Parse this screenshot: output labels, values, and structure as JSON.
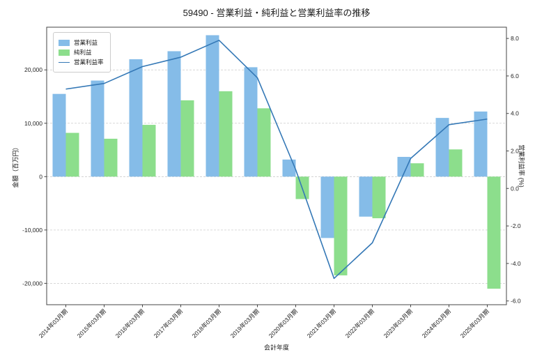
{
  "title": "59490 - 営業利益・純利益と営業利益率の推移",
  "axes": {
    "left_label": "金額（百万円）",
    "right_label": "営業利益率 (%)",
    "x_label": "会計年度",
    "left_ticks": [
      "20,000",
      "10,000",
      "0",
      "-10,000",
      "-20,000"
    ],
    "right_ticks": [
      "8.0",
      "6.0",
      "4.0",
      "2.0",
      "0.0",
      "-2.0",
      "-4.0",
      "-6.0"
    ]
  },
  "legend": [
    {
      "label": "営業利益",
      "type": "bar",
      "color": "#85BCE8"
    },
    {
      "label": "純利益",
      "type": "bar",
      "color": "#8CDE8C"
    },
    {
      "label": "営業利益率",
      "type": "line",
      "color": "#3478B6"
    }
  ],
  "chart_data": {
    "type": "bar+line",
    "categories": [
      "2014年03月期",
      "2015年03月期",
      "2016年03月期",
      "2017年03月期",
      "2018年03月期",
      "2019年03月期",
      "2020年03月期",
      "2021年03月期",
      "2022年03月期",
      "2023年03月期",
      "2024年03月期",
      "2025年03月期"
    ],
    "series": [
      {
        "name": "営業利益",
        "type": "bar",
        "axis": "left",
        "color": "#85BCE8",
        "values": [
          15500,
          18000,
          22000,
          23500,
          26500,
          20500,
          3200,
          -11500,
          -7500,
          3700,
          11000,
          12200
        ]
      },
      {
        "name": "純利益",
        "type": "bar",
        "axis": "left",
        "color": "#8CDE8C",
        "values": [
          8200,
          7100,
          9700,
          14300,
          16000,
          12800,
          -4200,
          -18500,
          -7800,
          2500,
          5100,
          -21000
        ]
      },
      {
        "name": "営業利益率",
        "type": "line",
        "axis": "right",
        "color": "#3478B6",
        "values": [
          5.3,
          5.6,
          6.5,
          7.0,
          7.9,
          5.9,
          1.0,
          -4.8,
          -2.9,
          1.6,
          3.4,
          3.7
        ]
      }
    ],
    "left_ylim": [
      -24000,
      28000
    ],
    "right_ylim": [
      -6.2,
      8.6
    ],
    "left_tick_values": [
      20000,
      10000,
      0,
      -10000,
      -20000
    ],
    "right_tick_values": [
      8,
      6,
      4,
      2,
      0,
      -2,
      -4,
      -6
    ],
    "grid": true,
    "legend_position": "upper left",
    "xlabel": "会計年度",
    "ylabel_left": "金額（百万円）",
    "ylabel_right": "営業利益率 (%)"
  }
}
